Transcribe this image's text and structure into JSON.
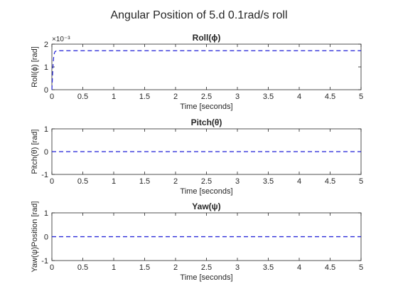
{
  "figure": {
    "title": "Angular Position of 5.d 0.1rad/s roll"
  },
  "chart_data": [
    {
      "type": "line",
      "title": "Roll(ϕ)",
      "xlabel": "Time [seconds]",
      "ylabel": "Roll(ϕ) [rad]",
      "xlim": [
        0,
        5
      ],
      "ylim": [
        0,
        2
      ],
      "y_multiplier": "×10⁻³",
      "xticks": [
        0,
        0.5,
        1,
        1.5,
        2,
        2.5,
        3,
        3.5,
        4,
        4.5,
        5
      ],
      "yticks": [
        0,
        1,
        2
      ],
      "grid": false,
      "series": [
        {
          "color": "#1f1fd6",
          "linestyle": "dashed",
          "x": [
            0,
            0.01,
            0.02,
            0.03,
            0.04,
            0.05,
            0.07,
            0.1,
            0.15,
            0.2,
            5
          ],
          "y": [
            0,
            0.6,
            1.15,
            1.45,
            1.6,
            1.67,
            1.7,
            1.71,
            1.71,
            1.71,
            1.71
          ]
        }
      ]
    },
    {
      "type": "line",
      "title": "Pitch(θ)",
      "xlabel": "Time [seconds]",
      "ylabel": "Pitch(θ) [rad]",
      "xlim": [
        0,
        5
      ],
      "ylim": [
        -1,
        1
      ],
      "xticks": [
        0,
        0.5,
        1,
        1.5,
        2,
        2.5,
        3,
        3.5,
        4,
        4.5,
        5
      ],
      "yticks": [
        -1,
        0,
        1
      ],
      "grid": false,
      "series": [
        {
          "color": "#1f1fd6",
          "linestyle": "dashed",
          "x": [
            0,
            5
          ],
          "y": [
            0,
            0
          ]
        }
      ]
    },
    {
      "type": "line",
      "title": "Yaw(ψ)",
      "xlabel": "Time [seconds]",
      "ylabel": "Yaw(ψ)Position [rad]",
      "xlim": [
        0,
        5
      ],
      "ylim": [
        -1,
        1
      ],
      "xticks": [
        0,
        0.5,
        1,
        1.5,
        2,
        2.5,
        3,
        3.5,
        4,
        4.5,
        5
      ],
      "yticks": [
        -1,
        0,
        1
      ],
      "grid": false,
      "series": [
        {
          "color": "#1f1fd6",
          "linestyle": "dashed",
          "x": [
            0,
            5
          ],
          "y": [
            0,
            0
          ]
        }
      ]
    }
  ]
}
